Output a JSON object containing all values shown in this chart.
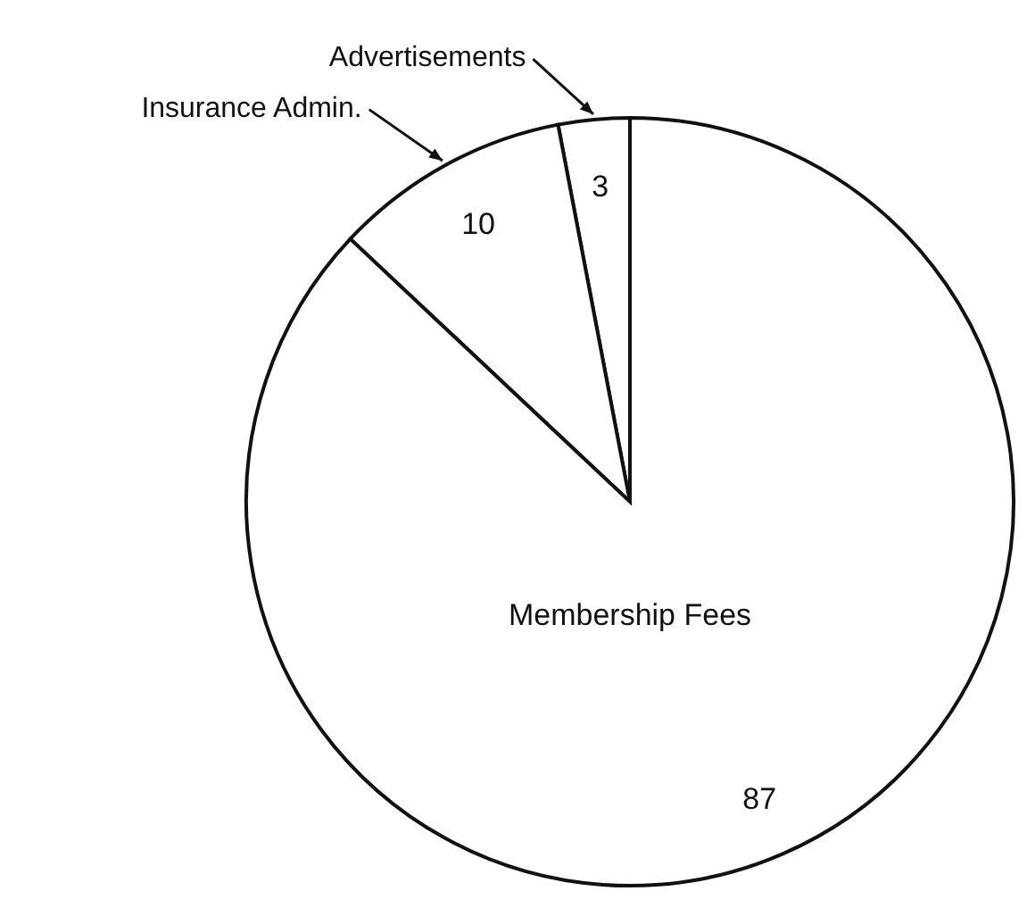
{
  "chart_data": {
    "type": "pie",
    "categories": [
      "Advertisements",
      "Insurance Admin.",
      "Membership Fees"
    ],
    "values": [
      3,
      10,
      87
    ],
    "colors": [
      "#ffffff",
      "#ffffff",
      "#ffffff"
    ],
    "data_labels": true
  }
}
